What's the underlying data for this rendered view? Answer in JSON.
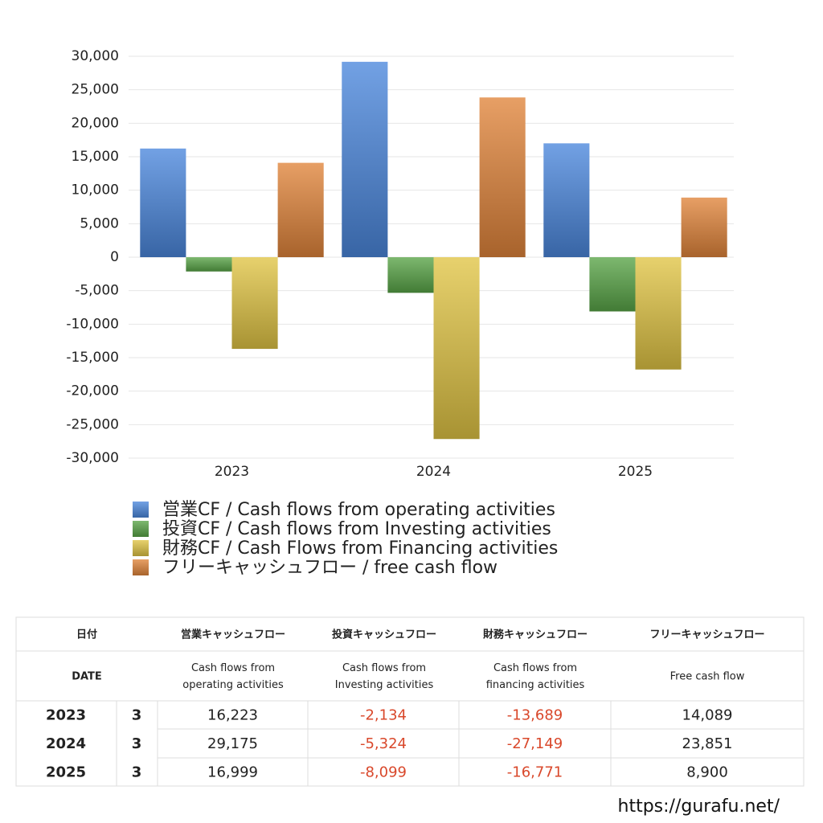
{
  "chart_data": {
    "type": "bar",
    "categories": [
      "2023",
      "2024",
      "2025"
    ],
    "series": [
      {
        "name": "営業CF / Cash flows from operating activities",
        "color": "#4a86dc",
        "values": [
          16223,
          29175,
          16999
        ]
      },
      {
        "name": "投資CF / Cash flows from Investing activities",
        "color": "#58a447",
        "values": [
          -2134,
          -5324,
          -8099
        ]
      },
      {
        "name": "財務CF / Cash Flows from Financing activities",
        "color": "#e0c444",
        "values": [
          -13689,
          -27149,
          -16771
        ]
      },
      {
        "name": "フリーキャッシュフロー / free cash flow",
        "color": "#e0843a",
        "values": [
          14089,
          23851,
          8900
        ]
      }
    ],
    "ylim": [
      -30000,
      30000
    ],
    "yticks": [
      {
        "value": -30000,
        "label": "-30,000"
      },
      {
        "value": -25000,
        "label": "-25,000"
      },
      {
        "value": -20000,
        "label": "-20,000"
      },
      {
        "value": -15000,
        "label": "-15,000"
      },
      {
        "value": -10000,
        "label": "-10,000"
      },
      {
        "value": -5000,
        "label": "-5,000"
      },
      0,
      {
        "value": 5000,
        "label": "5,000"
      },
      {
        "value": 10000,
        "label": "10,000"
      },
      {
        "value": 15000,
        "label": "15,000"
      },
      {
        "value": 20000,
        "label": "20,000"
      },
      {
        "value": 25000,
        "label": "25,000"
      },
      {
        "value": 30000,
        "label": "30,000"
      }
    ],
    "grid": true
  },
  "table": {
    "header_ja": [
      "日付",
      "営業キャッシュフロー",
      "投資キャッシュフロー",
      "財務キャッシュフロー",
      "フリーキャッシュフロー"
    ],
    "header_en": [
      [
        "DATE"
      ],
      [
        "Cash flows from",
        "operating activities"
      ],
      [
        "Cash flows from",
        "Investing activities"
      ],
      [
        "Cash flows from",
        "financing activities"
      ],
      [
        "Free cash flow"
      ]
    ],
    "rows": [
      [
        "2023",
        "3",
        "16,223",
        "-2,134",
        "-13,689",
        "14,089"
      ],
      [
        "2024",
        "3",
        "29,175",
        "-5,324",
        "-27,149",
        "23,851"
      ],
      [
        "2025",
        "3",
        "16,999",
        "-8,099",
        "-16,771",
        "8,900"
      ]
    ],
    "negative_color": "#d9482b"
  },
  "footer": "https://gurafu.net/"
}
